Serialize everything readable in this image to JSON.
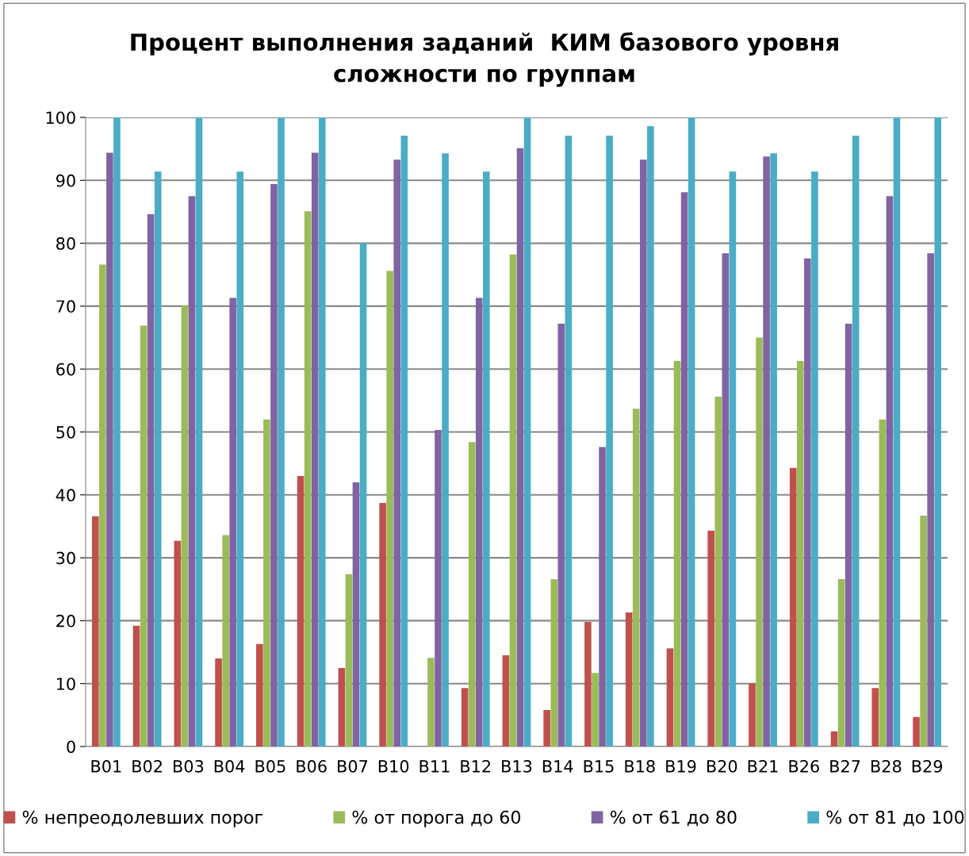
{
  "chart_data": {
    "type": "bar",
    "title": "Процент выполнения заданий  КИМ базового уровня\nсложности по группам",
    "categories": [
      "B01",
      "B02",
      "B03",
      "B04",
      "B05",
      "B06",
      "B07",
      "B10",
      "B11",
      "B12",
      "B13",
      "B14",
      "B15",
      "B18",
      "B19",
      "B20",
      "B21",
      "B26",
      "B27",
      "B28",
      "B29"
    ],
    "series": [
      {
        "name": "% непреодолевших порог",
        "color": "#c0504d",
        "values": [
          36.6,
          19.2,
          32.7,
          14,
          16.3,
          43,
          12.5,
          38.7,
          0,
          9.3,
          14.5,
          5.8,
          19.8,
          21.3,
          15.6,
          34.3,
          10,
          44.3,
          2.4,
          9.3,
          4.7
        ]
      },
      {
        "name": "% от порога до 60",
        "color": "#9bbb59",
        "values": [
          76.6,
          66.9,
          70.1,
          33.6,
          52,
          85.1,
          27.4,
          75.6,
          14.1,
          48.4,
          78.2,
          26.6,
          11.7,
          53.7,
          61.3,
          55.6,
          65,
          61.3,
          26.6,
          52,
          36.7
        ]
      },
      {
        "name": "% от 61 до 80",
        "color": "#8064a2",
        "values": [
          94.4,
          84.6,
          87.5,
          71.3,
          89.4,
          94.4,
          42,
          93.3,
          50.3,
          71.3,
          95.1,
          67.2,
          47.6,
          93.3,
          88.1,
          78.4,
          93.8,
          77.6,
          67.2,
          87.5,
          78.4
        ]
      },
      {
        "name": "% от 81 до 100",
        "color": "#4bacc6",
        "values": [
          100,
          91.4,
          100,
          91.4,
          100,
          100,
          80,
          97.1,
          94.3,
          91.4,
          100,
          97.1,
          97.1,
          98.6,
          100,
          91.4,
          94.3,
          91.4,
          97.1,
          100,
          100
        ]
      }
    ],
    "ylim": [
      0,
      100
    ],
    "yticks": [
      0,
      10,
      20,
      30,
      40,
      50,
      60,
      70,
      80,
      90,
      100
    ],
    "grid": "y",
    "legend": "bottom"
  }
}
